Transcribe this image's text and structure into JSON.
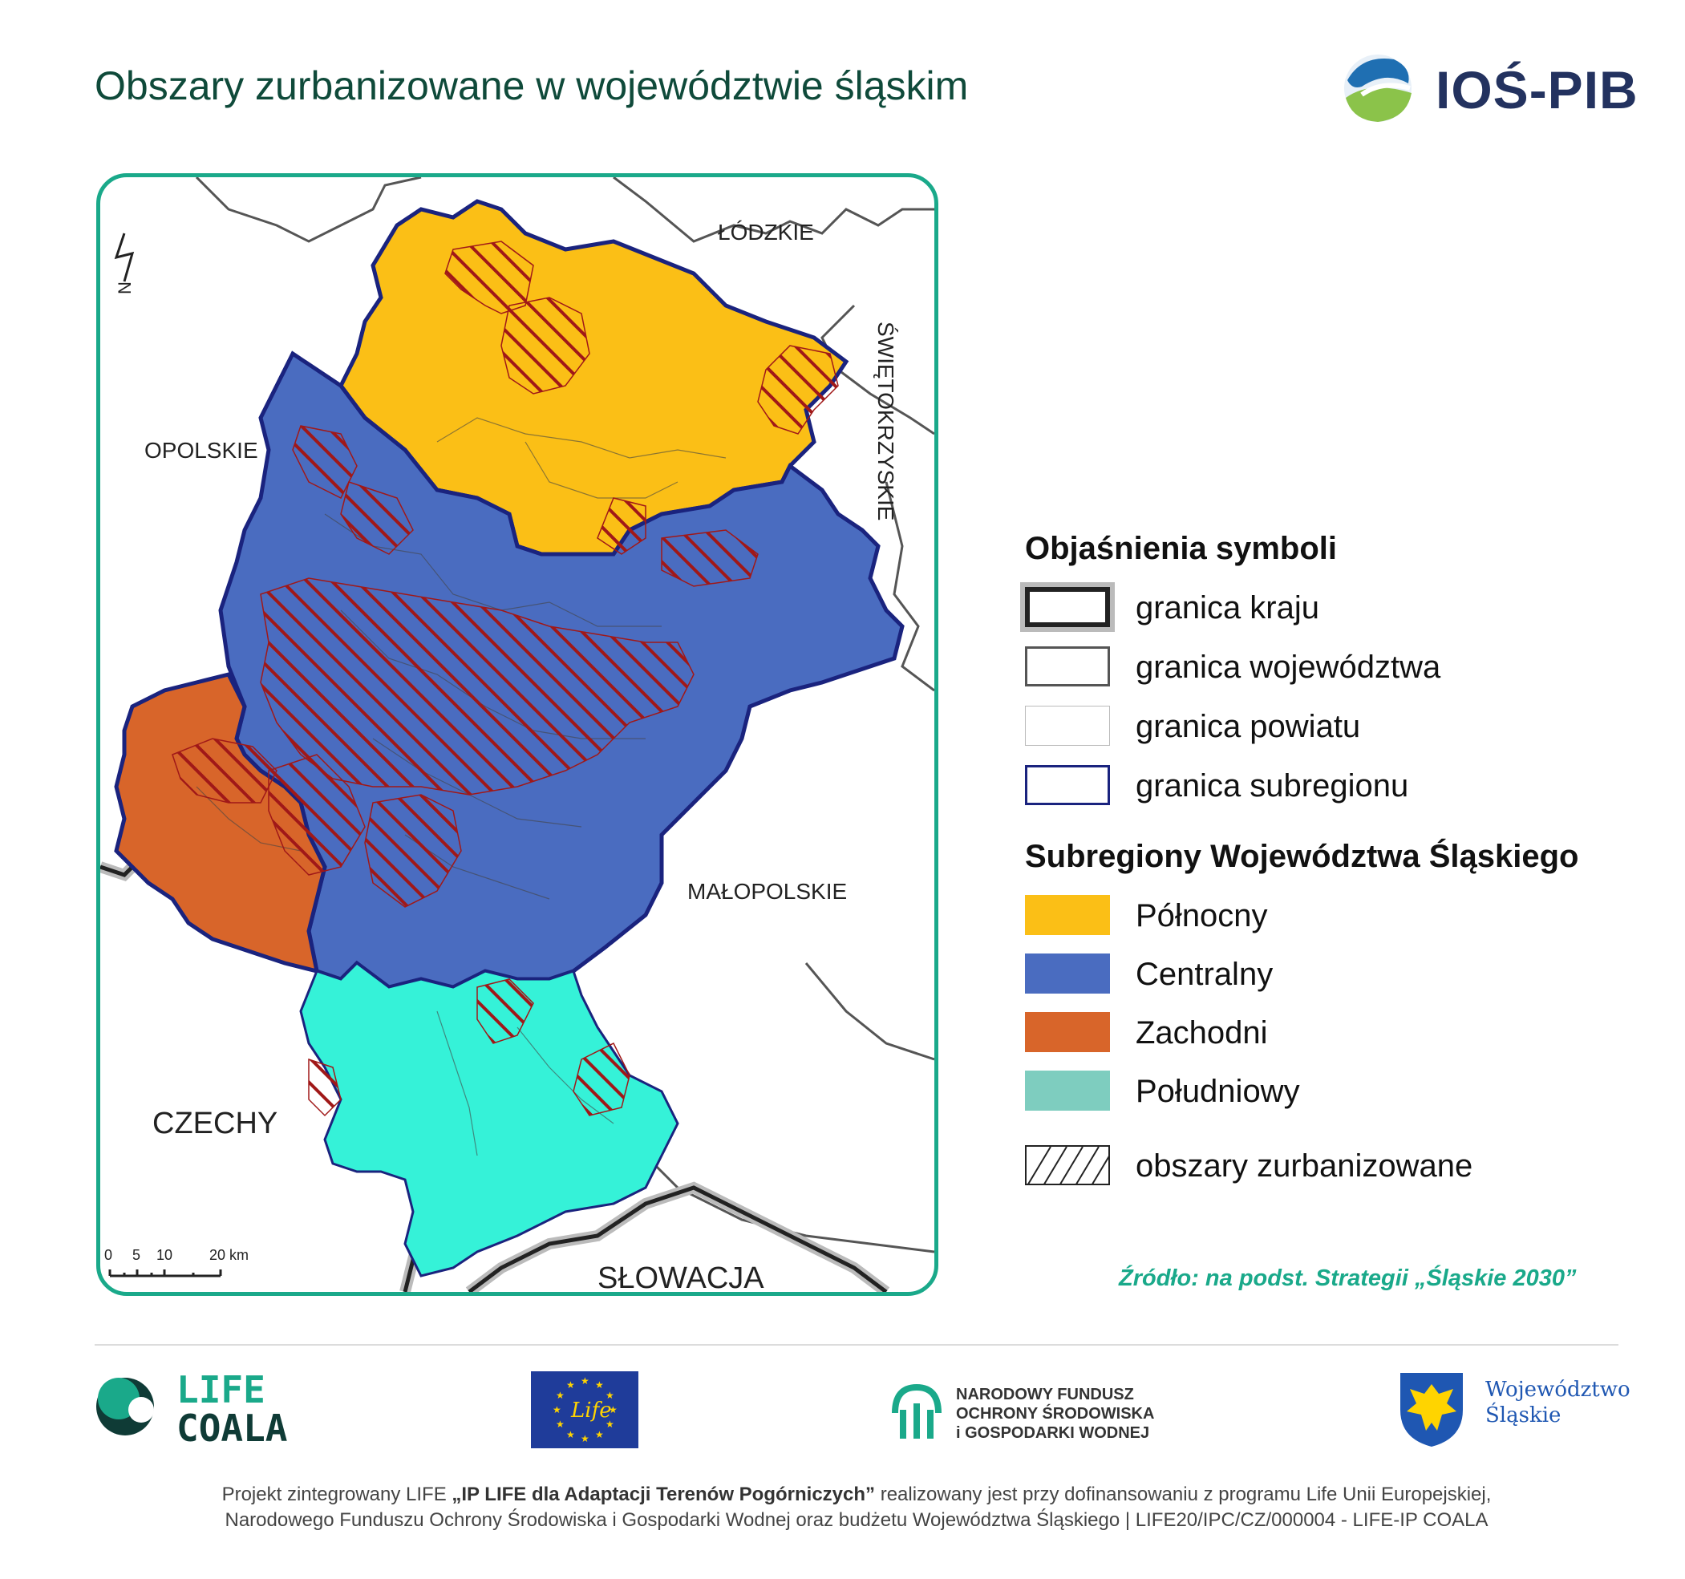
{
  "title": "Obszary zurbanizowane w województwie śląskim",
  "logo_ios": {
    "text": "IOŚ-PIB",
    "icon": "ios-pib-globe-icon"
  },
  "map": {
    "regions": {
      "lodzkie": "ŁÓDZKIE",
      "opolskie": "OPOLSKIE",
      "swietokrzyskie": "ŚWIĘTOKRZYSKIE",
      "malopolskie": "MAŁOPOLSKIE",
      "czechy": "CZECHY",
      "slowacja": "SŁOWACJA"
    },
    "north_arrow": "N",
    "scale_labels": [
      "0",
      "5",
      "10",
      "20 km"
    ]
  },
  "legend": {
    "symbols_title": "Objaśnienia symboli",
    "symbols": [
      {
        "label": "granica kraju",
        "style": "country"
      },
      {
        "label": "granica województwa",
        "style": "voivodeship"
      },
      {
        "label": "granica powiatu",
        "style": "county"
      },
      {
        "label": "granica subregionu",
        "style": "subregion"
      }
    ],
    "subregions_title": "Subregiony Województwa Śląskiego",
    "subregions": [
      {
        "label": "Północny",
        "color": "#fbbf16"
      },
      {
        "label": "Centralny",
        "color": "#4a6cc0"
      },
      {
        "label": "Zachodni",
        "color": "#d8652a"
      },
      {
        "label": "Południowy",
        "color": "#7ecdbf"
      }
    ],
    "urban_label": "obszary zurbanizowane"
  },
  "colors": {
    "north": "#fbbf16",
    "central": "#4a6cc0",
    "west": "#d8652a",
    "south": "#35f2d8",
    "hatch": "#a01818",
    "frame": "#1aa98a"
  },
  "source": "Źródło: na podst. Strategii „Śląskie 2030”",
  "footer": {
    "life_coala": {
      "line1": "LIFE",
      "line2": "COALA"
    },
    "eu_life": "Life",
    "nfos": {
      "line1": "NARODOWY FUNDUSZ",
      "line2": "OCHRONY ŚRODOWISKA",
      "line3": "i GOSPODARKI WODNEJ"
    },
    "wojewodztwo": {
      "line1": "Województwo",
      "line2": "Śląskie"
    },
    "text_prefix": "Projekt zintegrowany LIFE ",
    "text_bold": "„IP LIFE dla Adaptacji Terenów Pogórniczych”",
    "text_rest": " realizowany jest przy dofinansowaniu z programu Life Unii Europejskiej,",
    "text_line2": "Narodowego Funduszu Ochrony Środowiska i Gospodarki Wodnej oraz budżetu Województwa Śląskiego  |  LIFE20/IPC/CZ/000004 - LIFE-IP COALA"
  }
}
